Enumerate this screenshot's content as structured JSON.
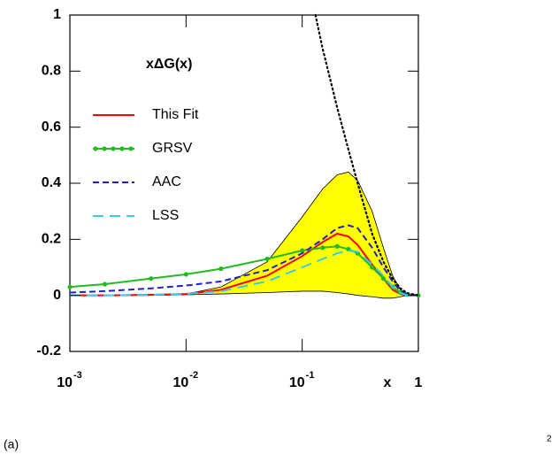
{
  "chart_data": {
    "type": "line",
    "title": "xΔG(x)",
    "x_label": "x",
    "annotations": [
      "(a)",
      "2"
    ],
    "xscale": "log",
    "xlim": [
      0.001,
      1
    ],
    "ylim": [
      -0.2,
      1
    ],
    "xticks": [
      {
        "value": 0.001,
        "label": "10",
        "sup": "-3"
      },
      {
        "value": 0.01,
        "label": "10",
        "sup": "-2"
      },
      {
        "value": 0.1,
        "label": "10",
        "sup": "-1"
      },
      1
    ],
    "yticks": [
      -0.2,
      0,
      0.2,
      0.4,
      0.6,
      0.8,
      1
    ],
    "x": [
      0.001,
      0.002,
      0.005,
      0.01,
      0.02,
      0.05,
      0.1,
      0.15,
      0.2,
      0.25,
      0.3,
      0.4,
      0.5,
      0.6,
      0.7,
      0.8,
      1
    ],
    "band": {
      "color": "#ffff00",
      "upper": [
        0,
        0,
        0.002,
        0.005,
        0.03,
        0.12,
        0.28,
        0.38,
        0.43,
        0.44,
        0.41,
        0.3,
        0.17,
        0.07,
        0.02,
        0.005,
        0
      ],
      "lower": [
        0,
        0,
        0,
        0.002,
        0.005,
        0.01,
        0.015,
        0.015,
        0.01,
        0.005,
        0,
        -0.005,
        -0.01,
        -0.01,
        -0.005,
        0,
        0
      ]
    },
    "series": [
      {
        "name": "This Fit",
        "color": "#ff0000",
        "linestyle": "solid",
        "values": [
          0,
          0,
          0.002,
          0.005,
          0.02,
          0.07,
          0.14,
          0.19,
          0.22,
          0.21,
          0.18,
          0.11,
          0.06,
          0.02,
          0.005,
          0,
          0
        ]
      },
      {
        "name": "GRSV",
        "color": "#22bb22",
        "linestyle": "solid",
        "marker": "circle",
        "values": [
          0.03,
          0.04,
          0.06,
          0.075,
          0.095,
          0.13,
          0.16,
          0.17,
          0.175,
          0.165,
          0.15,
          0.1,
          0.06,
          0.03,
          0.01,
          0.003,
          0
        ]
      },
      {
        "name": "AAC",
        "color": "#2020cc",
        "linestyle": "dashed",
        "values": [
          0.01,
          0.015,
          0.025,
          0.035,
          0.05,
          0.09,
          0.15,
          0.2,
          0.24,
          0.25,
          0.24,
          0.17,
          0.1,
          0.05,
          0.015,
          0.003,
          0
        ]
      },
      {
        "name": "LSS",
        "color": "#33ccee",
        "linestyle": "long-dashed",
        "values": [
          0,
          0,
          0.002,
          0.005,
          0.015,
          0.05,
          0.1,
          0.13,
          0.15,
          0.16,
          0.155,
          0.11,
          0.07,
          0.03,
          0.01,
          0,
          0
        ]
      },
      {
        "color": "#000000",
        "linestyle": "dotted",
        "x": [
          0.13,
          0.15,
          0.2,
          0.25,
          0.3,
          0.4,
          0.5,
          0.6,
          0.7,
          0.8,
          1
        ],
        "values": [
          1,
          0.88,
          0.67,
          0.52,
          0.4,
          0.22,
          0.12,
          0.06,
          0.025,
          0.008,
          0
        ]
      }
    ]
  }
}
